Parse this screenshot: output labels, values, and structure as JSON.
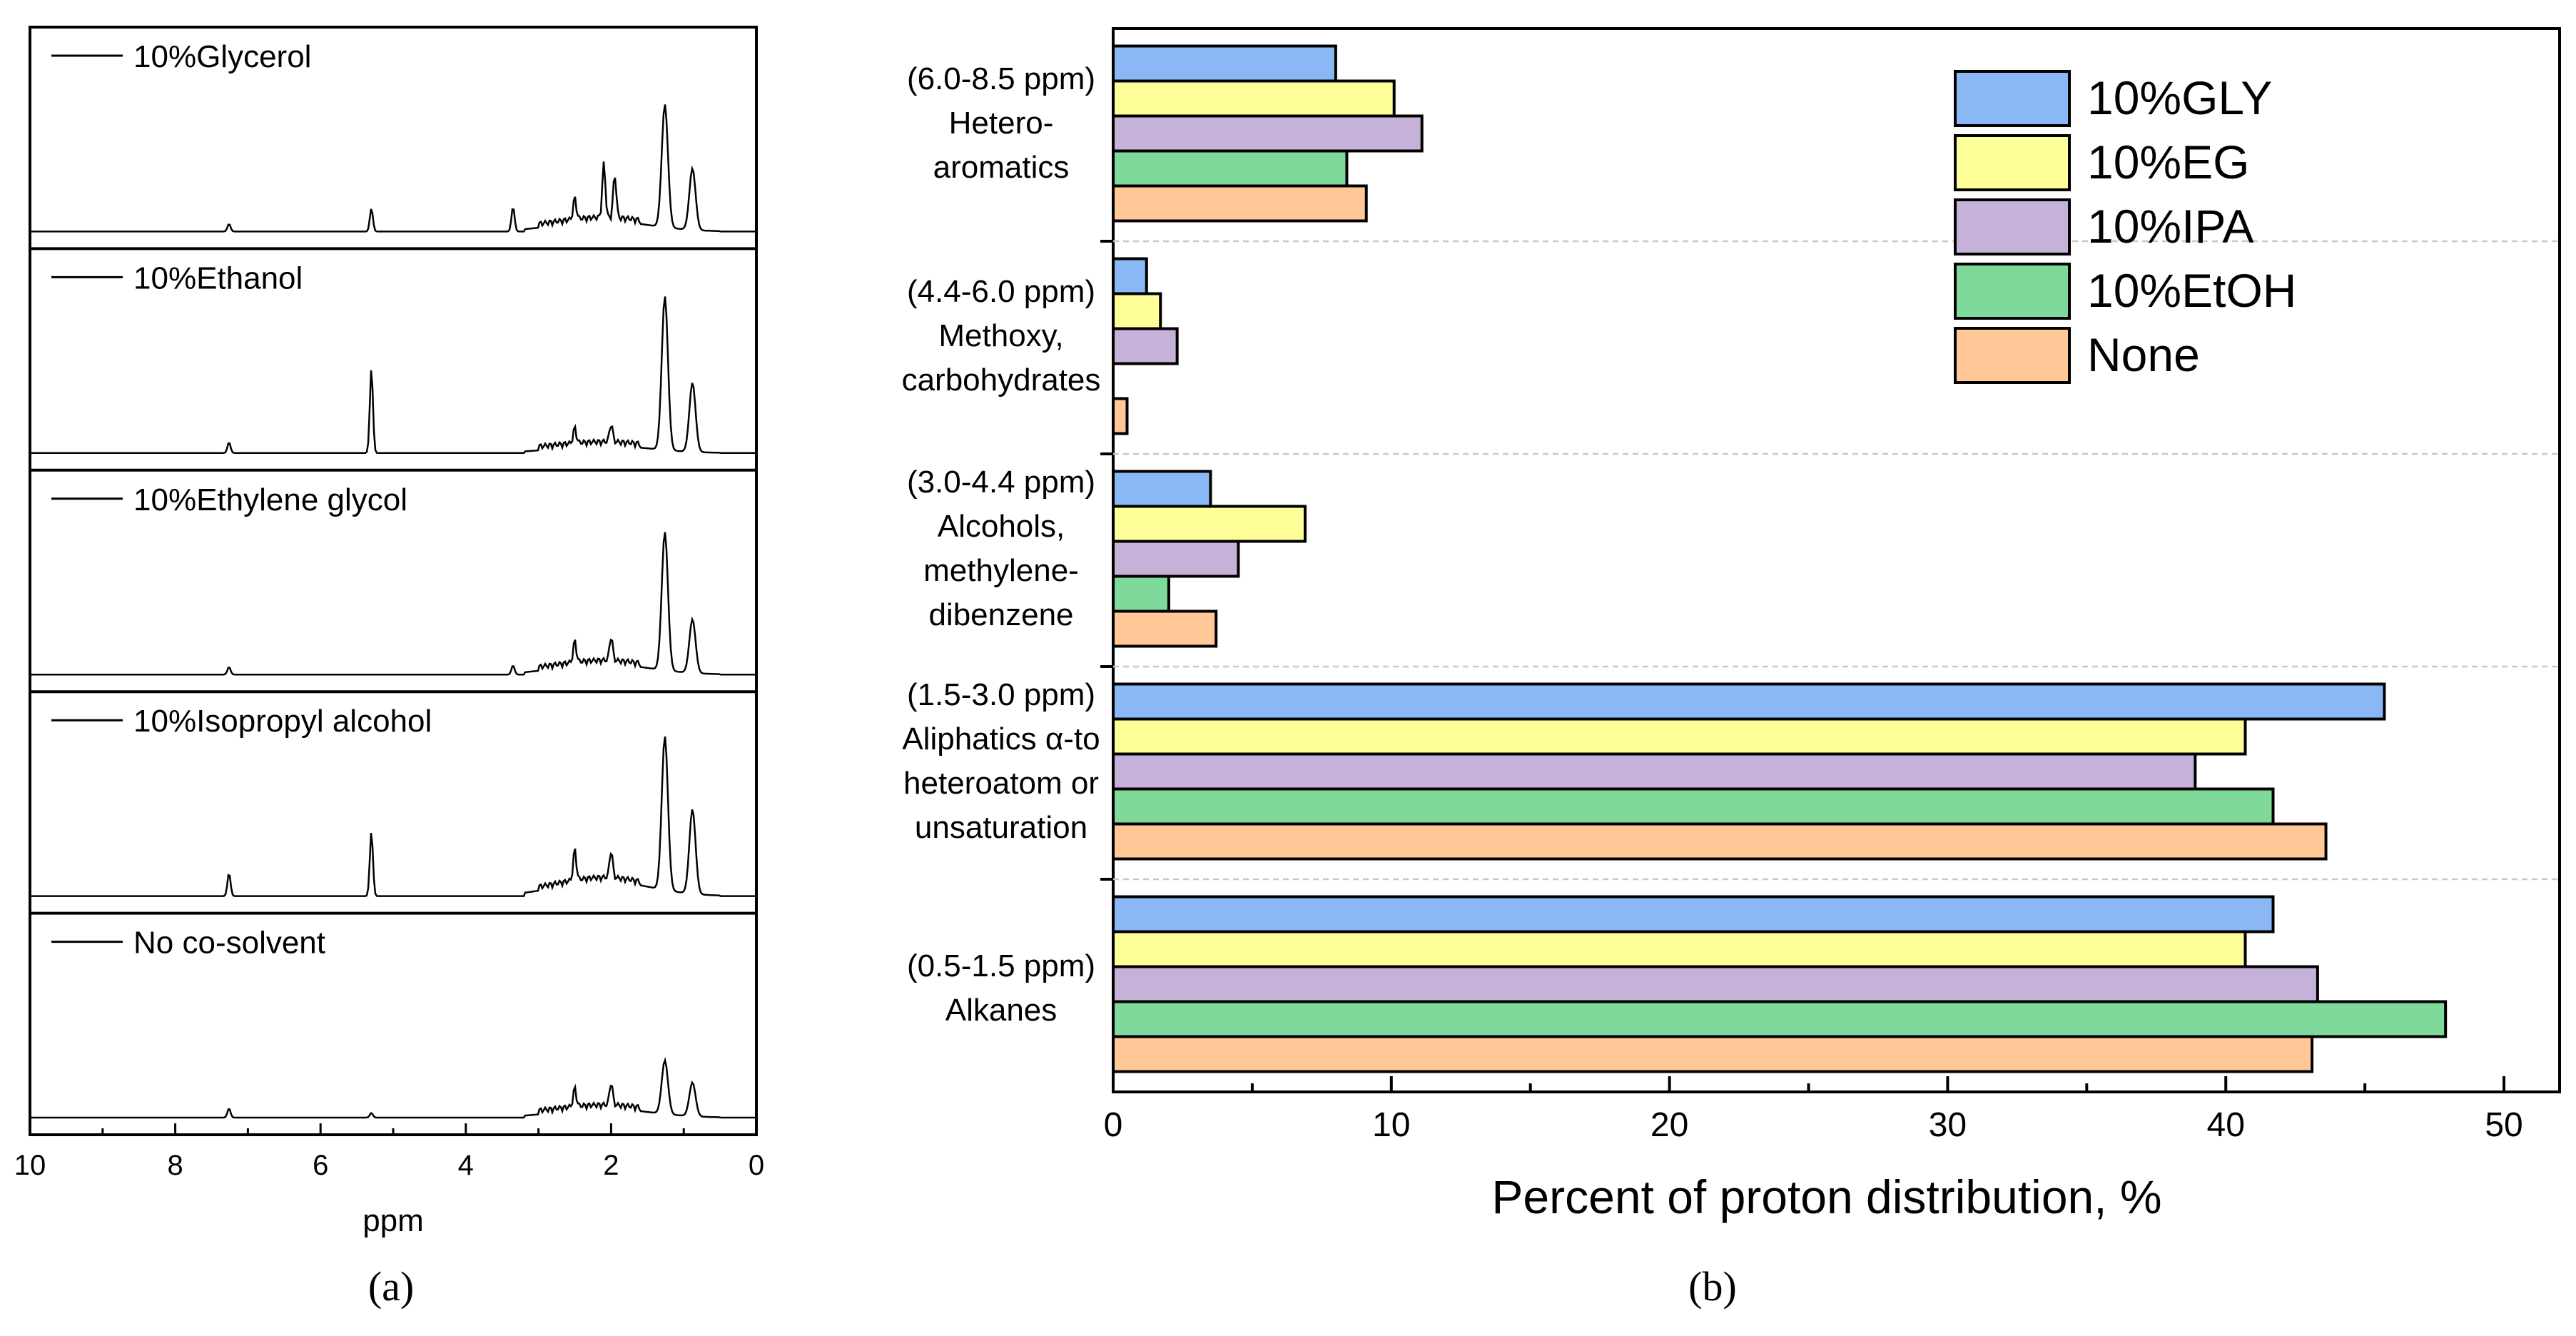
{
  "colors": {
    "GLY": "#8ab8f4",
    "EG": "#ffff99",
    "IPA": "#c6b1d9",
    "EtOH": "#7fd99b",
    "None": "#ffc896",
    "axis": "#000000",
    "divider": "#c8c8c8"
  },
  "chart_data": [
    {
      "type": "line",
      "panel_label": "a",
      "xlabel": "ppm",
      "xlim": [
        10,
        0
      ],
      "x_ticks": [
        "10",
        "8",
        "6",
        "4",
        "2",
        "0"
      ],
      "y_ticks_shown": false,
      "series": [
        {
          "name": "10%Glycerol",
          "legend": "10%Glycerol",
          "peaks": [
            {
              "ppm": 7.26,
              "rel_height": 0.05
            },
            {
              "ppm": 5.3,
              "rel_height": 0.15
            },
            {
              "ppm": 3.35,
              "rel_height": 0.16
            },
            {
              "ppm": 2.5,
              "rel_height": 0.14
            },
            {
              "ppm": 2.1,
              "rel_height": 0.35
            },
            {
              "ppm": 1.95,
              "rel_height": 0.28
            },
            {
              "ppm": 1.26,
              "rel_height": 0.8
            },
            {
              "ppm": 0.88,
              "rel_height": 0.4
            }
          ]
        },
        {
          "name": "10%Ethanol",
          "legend": "10%Ethanol",
          "peaks": [
            {
              "ppm": 7.26,
              "rel_height": 0.07
            },
            {
              "ppm": 5.3,
              "rel_height": 0.55
            },
            {
              "ppm": 2.5,
              "rel_height": 0.1
            },
            {
              "ppm": 2.0,
              "rel_height": 0.12
            },
            {
              "ppm": 1.26,
              "rel_height": 1.0
            },
            {
              "ppm": 0.88,
              "rel_height": 0.45
            }
          ]
        },
        {
          "name": "10%Ethylene glycol",
          "legend": "10%Ethylene glycol",
          "peaks": [
            {
              "ppm": 7.26,
              "rel_height": 0.05
            },
            {
              "ppm": 3.35,
              "rel_height": 0.06
            },
            {
              "ppm": 2.5,
              "rel_height": 0.14
            },
            {
              "ppm": 2.0,
              "rel_height": 0.16
            },
            {
              "ppm": 1.26,
              "rel_height": 0.9
            },
            {
              "ppm": 0.88,
              "rel_height": 0.35
            }
          ]
        },
        {
          "name": "10%Isopropyl alcohol",
          "legend": "10%Isopropyl alcohol",
          "peaks": [
            {
              "ppm": 7.26,
              "rel_height": 0.15
            },
            {
              "ppm": 5.3,
              "rel_height": 0.42
            },
            {
              "ppm": 2.5,
              "rel_height": 0.2
            },
            {
              "ppm": 2.0,
              "rel_height": 0.18
            },
            {
              "ppm": 1.26,
              "rel_height": 1.0
            },
            {
              "ppm": 0.88,
              "rel_height": 0.55
            }
          ]
        },
        {
          "name": "No co-solvent",
          "legend": "No co-solvent",
          "peaks": [
            {
              "ppm": 7.26,
              "rel_height": 0.06
            },
            {
              "ppm": 5.3,
              "rel_height": 0.03
            },
            {
              "ppm": 2.5,
              "rel_height": 0.12
            },
            {
              "ppm": 2.0,
              "rel_height": 0.15
            },
            {
              "ppm": 1.26,
              "rel_height": 0.35
            },
            {
              "ppm": 0.88,
              "rel_height": 0.22
            }
          ]
        }
      ]
    },
    {
      "type": "bar",
      "orientation": "horizontal",
      "panel_label": "b",
      "xlabel": "Percent of proton distribution, %",
      "ylabel": "",
      "xlim": [
        0,
        52
      ],
      "x_ticks": [
        0,
        10,
        20,
        30,
        40,
        50
      ],
      "legend_position": "top-right",
      "categories": [
        {
          "key": "hetero",
          "labels": [
            "(6.0-8.5 ppm)",
            "Hetero-",
            "aromatics"
          ]
        },
        {
          "key": "methoxy",
          "labels": [
            "(4.4-6.0 ppm)",
            "Methoxy,",
            "carbohydrates"
          ]
        },
        {
          "key": "alcohols",
          "labels": [
            "(3.0-4.4 ppm)",
            "Alcohols,",
            "methylene-",
            "dibenzene"
          ]
        },
        {
          "key": "aliphatics",
          "labels": [
            "(1.5-3.0 ppm)",
            "Aliphatics α-to",
            "heteroatom or",
            "unsaturation"
          ]
        },
        {
          "key": "alkanes",
          "labels": [
            "(0.5-1.5 ppm)",
            "Alkanes"
          ]
        }
      ],
      "series": [
        {
          "name": "10%GLY",
          "color_key": "GLY",
          "values": [
            8.0,
            1.2,
            3.5,
            45.7,
            41.7
          ]
        },
        {
          "name": "10%EG",
          "color_key": "EG",
          "values": [
            10.1,
            1.7,
            6.9,
            40.7,
            40.7
          ]
        },
        {
          "name": "10%IPA",
          "color_key": "IPA",
          "values": [
            11.1,
            2.3,
            4.5,
            38.9,
            43.3
          ]
        },
        {
          "name": "10%EtOH",
          "color_key": "EtOH",
          "values": [
            8.4,
            0.0,
            2.0,
            41.7,
            47.9
          ]
        },
        {
          "name": "None",
          "color_key": "None",
          "values": [
            9.1,
            0.5,
            3.7,
            43.6,
            43.1
          ]
        }
      ]
    }
  ],
  "captions": {
    "a": "(a)",
    "b": "(b)"
  }
}
